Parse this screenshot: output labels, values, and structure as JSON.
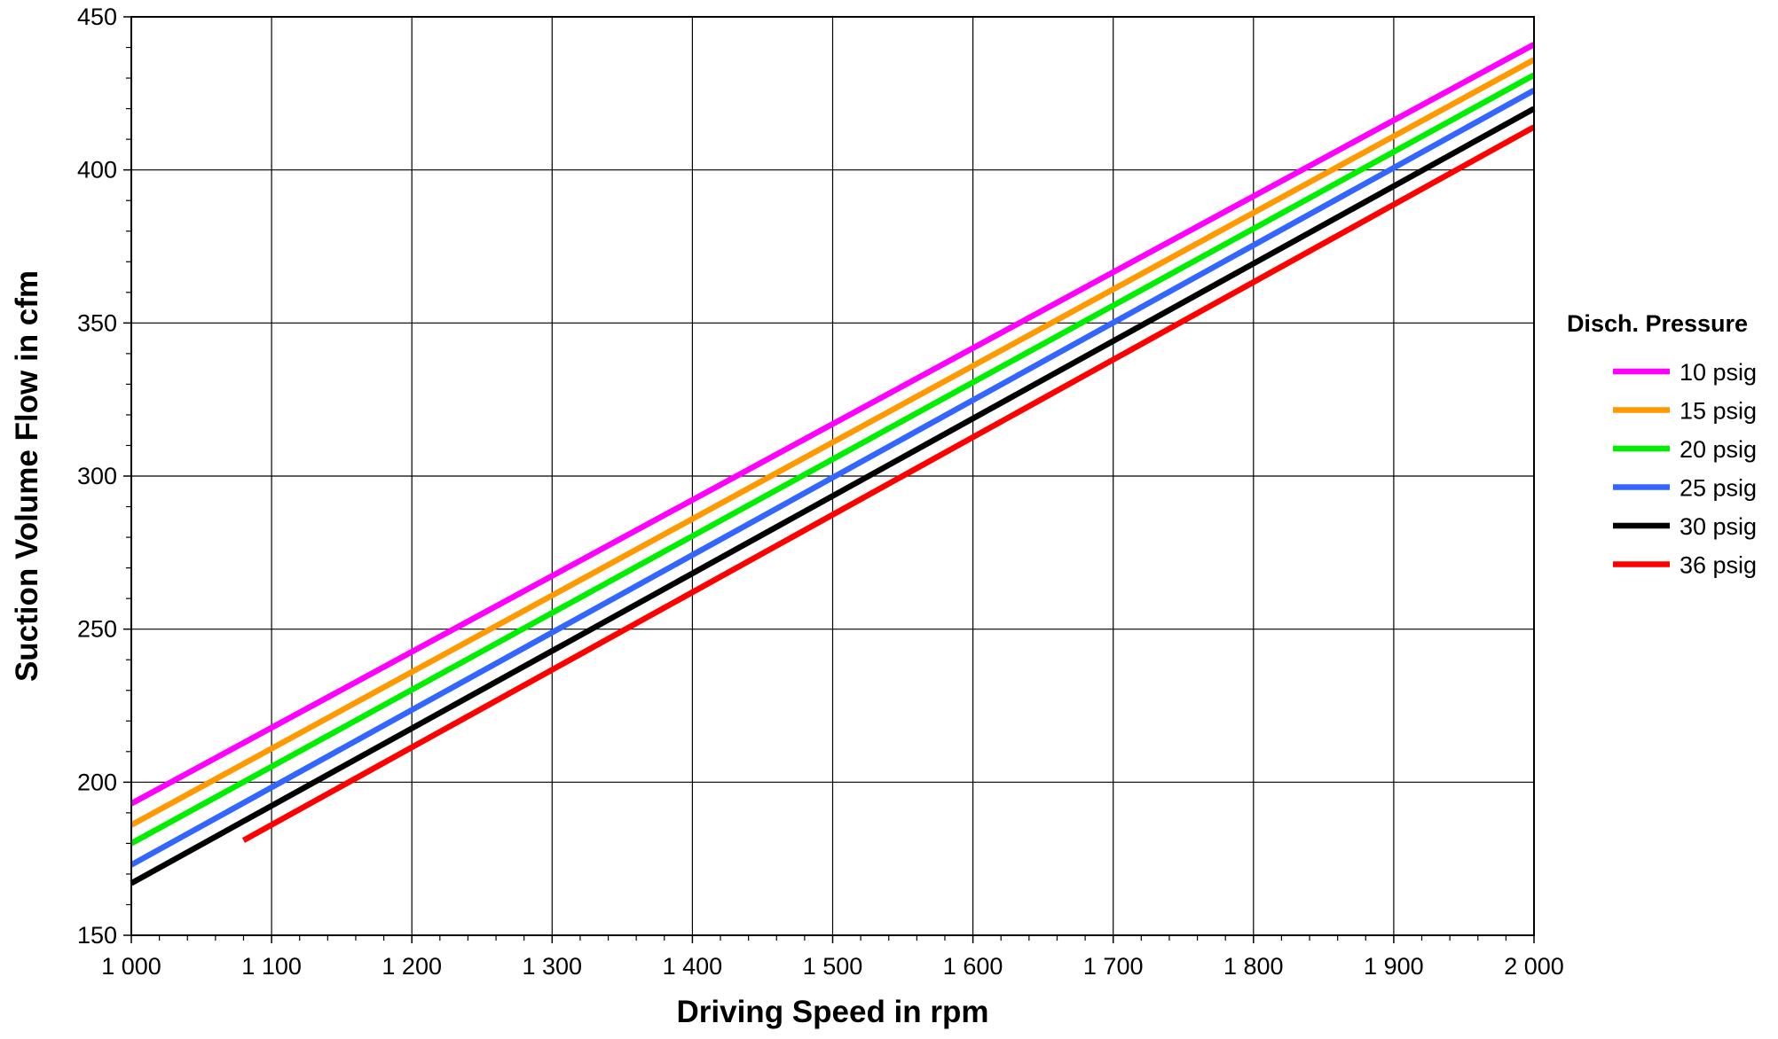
{
  "chart_data": {
    "type": "line",
    "title": "",
    "xlabel": "Driving Speed in rpm",
    "ylabel": "Suction Volume Flow in cfm",
    "xlim": [
      1000,
      2000
    ],
    "ylim": [
      150,
      450
    ],
    "xticks": [
      1000,
      1100,
      1200,
      1300,
      1400,
      1500,
      1600,
      1700,
      1800,
      1900,
      2000
    ],
    "xtick_labels": [
      "1 000",
      "1 100",
      "1 200",
      "1 300",
      "1 400",
      "1 500",
      "1 600",
      "1 700",
      "1 800",
      "1 900",
      "2 000"
    ],
    "yticks": [
      150,
      200,
      250,
      300,
      350,
      400,
      450
    ],
    "ytick_labels": [
      "150",
      "200",
      "250",
      "300",
      "350",
      "400",
      "450"
    ],
    "grid": true,
    "legend": {
      "title": "Disch. Pressure",
      "position": "right"
    },
    "series": [
      {
        "name": "10 psig",
        "color": "#ff00ff",
        "x": [
          1000,
          2000
        ],
        "y": [
          193,
          441
        ]
      },
      {
        "name": "15 psig",
        "color": "#ff9900",
        "x": [
          1000,
          2000
        ],
        "y": [
          186,
          436
        ]
      },
      {
        "name": "20 psig",
        "color": "#00ee00",
        "x": [
          1000,
          2000
        ],
        "y": [
          180,
          431
        ]
      },
      {
        "name": "25 psig",
        "color": "#3366ff",
        "x": [
          1000,
          2000
        ],
        "y": [
          173,
          426
        ]
      },
      {
        "name": "30 psig",
        "color": "#000000",
        "x": [
          1000,
          2000
        ],
        "y": [
          167,
          420
        ]
      },
      {
        "name": "36 psig",
        "color": "#ff0000",
        "x": [
          1080,
          2000
        ],
        "y": [
          181,
          414
        ]
      }
    ]
  }
}
